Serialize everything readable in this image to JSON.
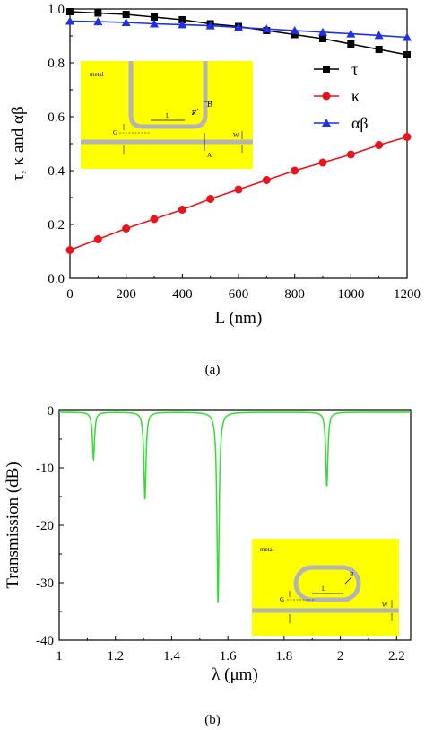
{
  "chart_data": [
    {
      "type": "line",
      "panel_label": "(a)",
      "xlabel": "L (nm)",
      "ylabel": "τ, κ and αβ",
      "xlim": [
        0,
        1200
      ],
      "ylim": [
        0.0,
        1.0
      ],
      "xticks": [
        "0",
        "200",
        "400",
        "600",
        "800",
        "1000",
        "1200"
      ],
      "yticks": [
        "0.0",
        "0.2",
        "0.4",
        "0.6",
        "0.8",
        "1.0"
      ],
      "legend_position": "right",
      "series": [
        {
          "name": "τ",
          "color": "#000000",
          "marker": "square",
          "x": [
            0,
            100,
            200,
            300,
            400,
            500,
            600,
            700,
            800,
            900,
            1000,
            1100,
            1200
          ],
          "values": [
            0.99,
            0.985,
            0.98,
            0.97,
            0.96,
            0.945,
            0.935,
            0.92,
            0.905,
            0.89,
            0.87,
            0.85,
            0.83
          ]
        },
        {
          "name": "κ",
          "color": "#e8141c",
          "marker": "circle",
          "x": [
            0,
            100,
            200,
            300,
            400,
            500,
            600,
            700,
            800,
            900,
            1000,
            1100,
            1200
          ],
          "values": [
            0.105,
            0.145,
            0.185,
            0.22,
            0.255,
            0.295,
            0.33,
            0.365,
            0.4,
            0.43,
            0.46,
            0.495,
            0.525
          ]
        },
        {
          "name": "αβ",
          "color": "#1f2fe8",
          "marker": "triangle",
          "x": [
            0,
            100,
            200,
            300,
            400,
            500,
            600,
            700,
            800,
            900,
            1000,
            1100,
            1200
          ],
          "values": [
            0.955,
            0.953,
            0.95,
            0.945,
            0.942,
            0.938,
            0.932,
            0.926,
            0.92,
            0.914,
            0.908,
            0.902,
            0.895
          ]
        }
      ],
      "inset": {
        "background": "#ffff00",
        "labels": [
          "metal",
          "L",
          "R",
          "B",
          "G",
          "W",
          "A"
        ]
      }
    },
    {
      "type": "line",
      "panel_label": "(b)",
      "xlabel": "λ (μm)",
      "ylabel": "Transmission (dB)",
      "xlim": [
        1.0,
        2.25
      ],
      "ylim": [
        -40,
        0
      ],
      "xticks": [
        "1",
        "1.2",
        "1.4",
        "1.6",
        "1.8",
        "2",
        "2.2"
      ],
      "yticks": [
        "0",
        "-10",
        "-20",
        "-30",
        "-40"
      ],
      "series": [
        {
          "color": "#33dd33",
          "baseline": -0.3,
          "dips": [
            {
              "x": 1.122,
              "depth": -8.5
            },
            {
              "x": 1.305,
              "depth": -15.5
            },
            {
              "x": 1.565,
              "depth": -33.5
            },
            {
              "x": 1.952,
              "depth": -13.2
            }
          ]
        }
      ],
      "inset": {
        "background": "#ffff00",
        "labels": [
          "metal",
          "L",
          "R",
          "G",
          "W"
        ]
      }
    }
  ]
}
